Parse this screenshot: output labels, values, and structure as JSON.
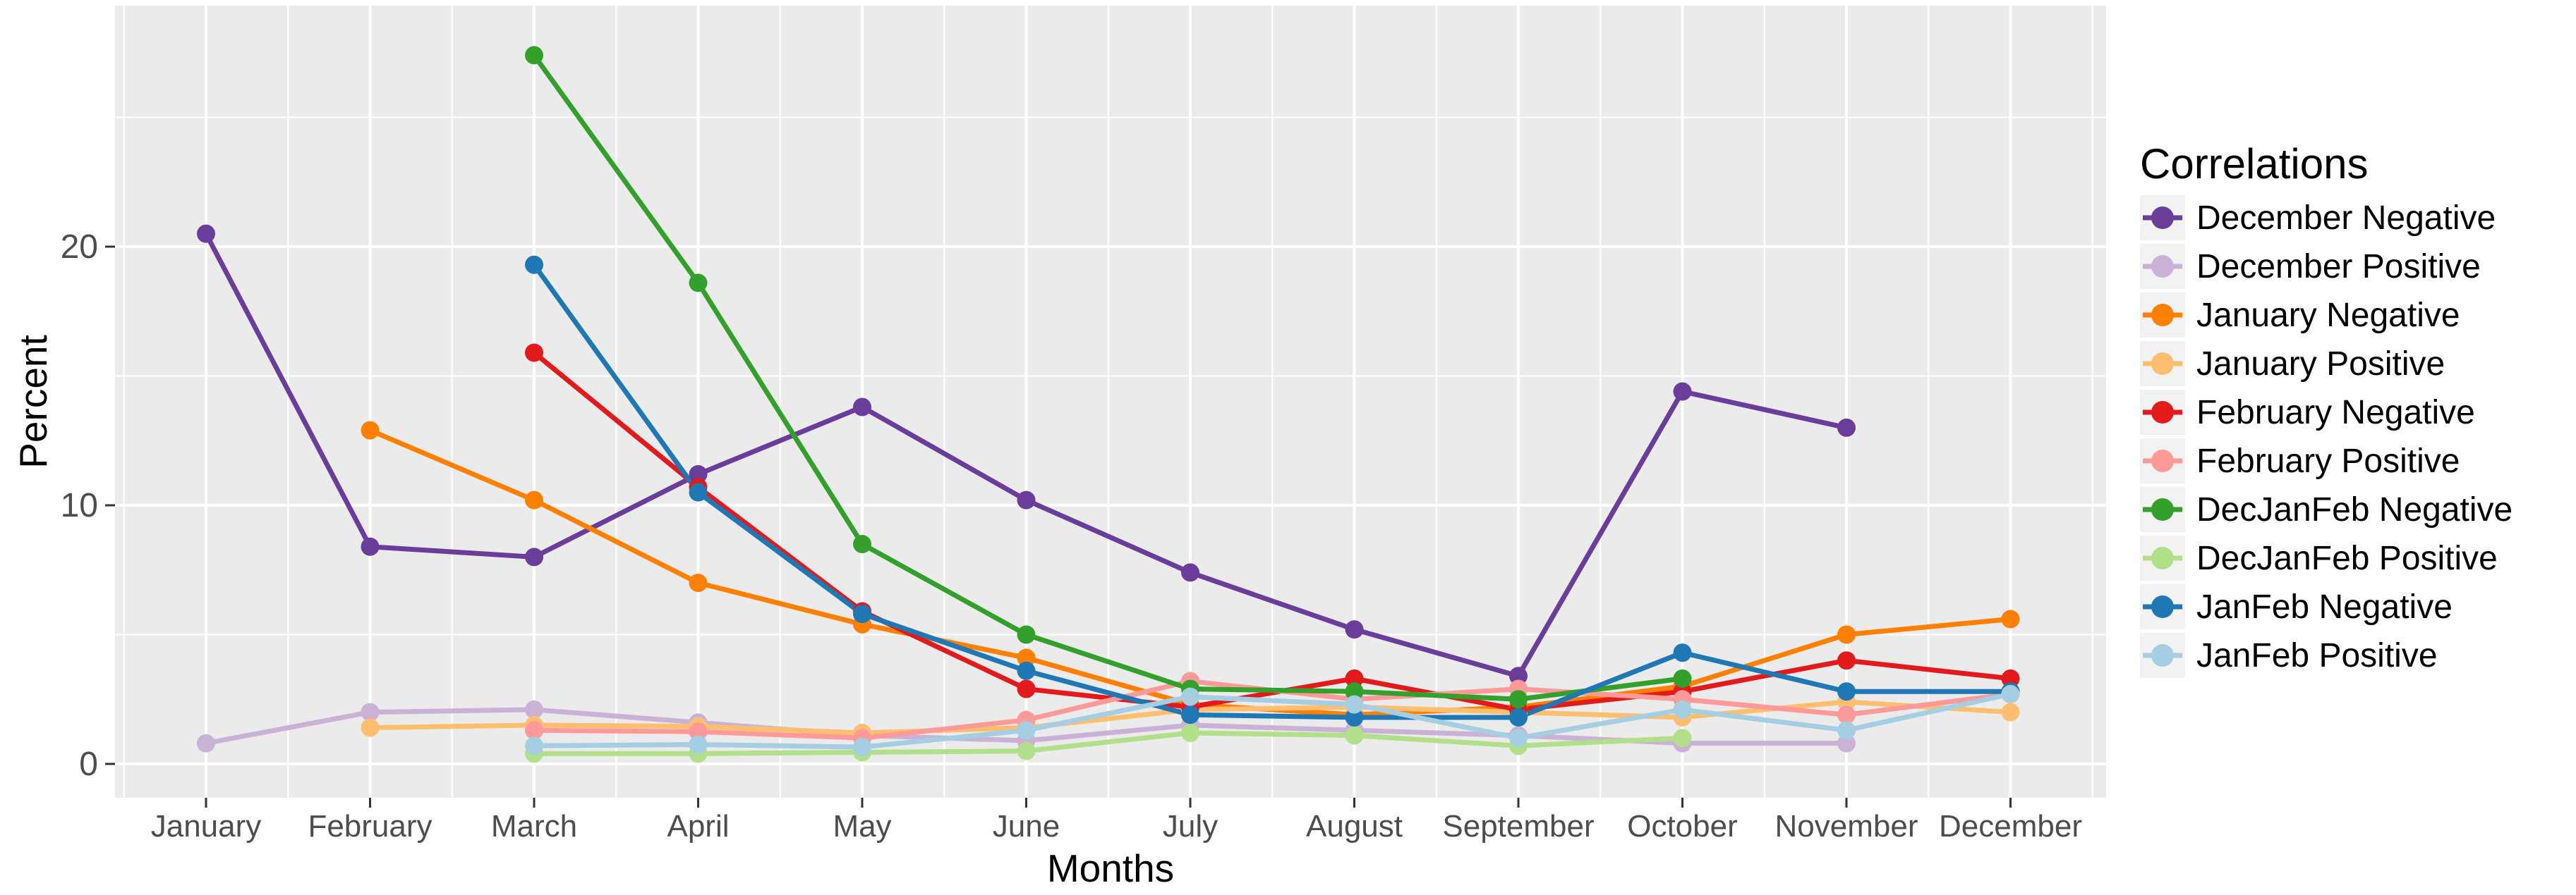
{
  "chart_data": {
    "type": "line",
    "title": "",
    "xlabel": "Months",
    "ylabel": "Percent",
    "legend_title": "Correlations",
    "legend_position": "right",
    "grid": true,
    "categories": [
      "January",
      "February",
      "March",
      "April",
      "May",
      "June",
      "July",
      "August",
      "September",
      "October",
      "November",
      "December"
    ],
    "y_ticks": [
      0,
      10,
      20
    ],
    "y_minor_ticks": [
      5,
      15,
      25
    ],
    "ylim": [
      -1.3,
      29.3
    ],
    "series": [
      {
        "name": "December Negative",
        "color": "#6A3D9A",
        "values": [
          20.5,
          8.4,
          8.0,
          11.2,
          13.8,
          10.2,
          7.4,
          5.2,
          3.4,
          14.4,
          13.0,
          null
        ]
      },
      {
        "name": "December Positive",
        "color": "#CAB2D6",
        "values": [
          0.8,
          2.0,
          2.1,
          1.6,
          1.1,
          0.9,
          1.5,
          1.3,
          1.1,
          0.8,
          0.8,
          null
        ]
      },
      {
        "name": "January Negative",
        "color": "#FF7F00",
        "values": [
          null,
          12.9,
          10.2,
          7.0,
          5.4,
          4.1,
          2.3,
          1.9,
          2.2,
          3.0,
          5.0,
          5.6
        ]
      },
      {
        "name": "January Positive",
        "color": "#FDBF6F",
        "values": [
          null,
          1.4,
          1.5,
          1.45,
          1.2,
          1.4,
          2.1,
          2.2,
          2.0,
          1.8,
          2.4,
          2.0
        ]
      },
      {
        "name": "February Negative",
        "color": "#E31A1C",
        "values": [
          null,
          null,
          15.9,
          10.7,
          5.9,
          2.9,
          2.2,
          3.3,
          2.1,
          2.8,
          4.0,
          3.3
        ]
      },
      {
        "name": "February Positive",
        "color": "#FB9A99",
        "values": [
          null,
          null,
          1.3,
          1.25,
          1.0,
          1.7,
          3.2,
          2.5,
          2.9,
          2.5,
          1.9,
          2.7
        ]
      },
      {
        "name": "DecJanFeb Negative",
        "color": "#33A02C",
        "values": [
          null,
          null,
          27.4,
          18.6,
          8.5,
          5.0,
          2.9,
          2.8,
          2.5,
          3.3,
          null,
          null
        ]
      },
      {
        "name": "DecJanFeb Positive",
        "color": "#B2DF8A",
        "values": [
          null,
          null,
          0.4,
          0.4,
          0.45,
          0.5,
          1.2,
          1.1,
          0.7,
          1.0,
          null,
          null
        ]
      },
      {
        "name": "JanFeb Negative",
        "color": "#1F78B4",
        "values": [
          null,
          null,
          19.3,
          10.5,
          5.8,
          3.6,
          1.9,
          1.8,
          1.8,
          4.3,
          2.8,
          2.8
        ]
      },
      {
        "name": "JanFeb Positive",
        "color": "#A6CEE3",
        "values": [
          null,
          null,
          0.7,
          0.75,
          0.65,
          1.3,
          2.6,
          2.3,
          1.0,
          2.1,
          1.3,
          2.7
        ]
      }
    ],
    "colors": {
      "panel_background": "#EBEBEB",
      "gridline": "#FFFFFF",
      "axis_text": "#4D4D4D",
      "axis_title": "#000000",
      "tick_mark": "#333333",
      "legend_key_background": "#F2F2F2",
      "figure_background": "#FFFFFF"
    }
  }
}
